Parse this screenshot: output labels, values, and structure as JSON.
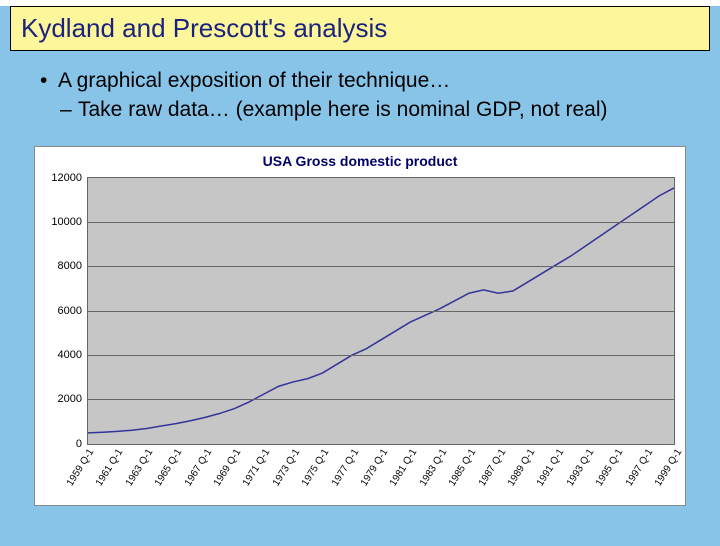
{
  "slide": {
    "background_color": "#88c3e8",
    "title_bar": {
      "text": "Kydland and Prescott's analysis",
      "background_color": "#fdf69a",
      "text_color": "#1a237e",
      "font_size": 26
    },
    "bullets": {
      "level1": "A graphical exposition of their technique…",
      "level2": "Take raw data… (example here is nominal GDP, not real)",
      "font_size": 21,
      "text_color": "#000000"
    }
  },
  "chart": {
    "type": "line",
    "title": "USA Gross domestic product",
    "title_fontsize": 14,
    "title_color": "#000066",
    "background_color": "#ffffff",
    "plot_background_color": "#c6c6c6",
    "grid_color": "#666666",
    "border_color": "#888888",
    "line_color": "#333399",
    "line_width": 1.5,
    "ylim": [
      0,
      12000
    ],
    "ytick_step": 2000,
    "yticks": [
      0,
      2000,
      4000,
      6000,
      8000,
      10000,
      12000
    ],
    "ylabel_fontsize": 11,
    "xlabel_fontsize": 10,
    "xlabel_rotation_deg": -58,
    "x_categories": [
      "1959 Q-1",
      "1961 Q-1",
      "1963 Q-1",
      "1965 Q-1",
      "1967 Q-1",
      "1969 Q-1",
      "1971 Q-1",
      "1973 Q-1",
      "1975 Q-1",
      "1977 Q-1",
      "1979 Q-1",
      "1981 Q-1",
      "1983 Q-1",
      "1985 Q-1",
      "1987 Q-1",
      "1989 Q-1",
      "1991 Q-1",
      "1993 Q-1",
      "1995 Q-1",
      "1997 Q-1",
      "1999 Q-1"
    ],
    "series": [
      {
        "name": "Nominal GDP",
        "color": "#333399",
        "values": [
          500,
          530,
          570,
          620,
          700,
          810,
          920,
          1050,
          1200,
          1380,
          1600,
          1900,
          2250,
          2600,
          2800,
          2950,
          3200,
          3600,
          4000,
          4300,
          4700,
          5100,
          5500,
          5800,
          6100,
          6450,
          6800,
          6950,
          6800,
          6900,
          7300,
          7700,
          8100,
          8500,
          8950,
          9400,
          9850,
          10300,
          10750,
          11200,
          11550
        ]
      }
    ]
  }
}
